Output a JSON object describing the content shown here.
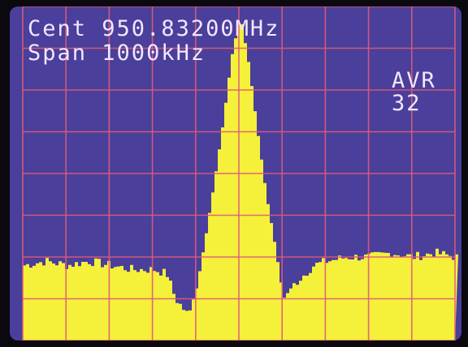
{
  "readout": {
    "center_label": "Cent",
    "center_value": "950.83200MHz",
    "span_label": "Span",
    "span_value": "1000kHz",
    "averaging_label": "AVR",
    "averaging_count": "32"
  },
  "colors": {
    "screen_background": "#4a3f9a",
    "grid": "#e05a7a",
    "trace_fill": "#f5f03a",
    "text": "#f2e6ff"
  },
  "grid": {
    "vertical_divisions": 10,
    "horizontal_divisions": 8
  },
  "chart_data": {
    "type": "area",
    "x": [
      -500,
      -450,
      -400,
      -350,
      -300,
      -250,
      -200,
      -170,
      -150,
      -120,
      -100,
      -80,
      -60,
      -40,
      -20,
      0,
      20,
      40,
      60,
      80,
      100,
      120,
      150,
      170,
      200,
      250,
      300,
      350,
      400,
      450,
      500
    ],
    "values": [
      -62,
      -61,
      -62,
      -61,
      -62,
      -63,
      -63,
      -64,
      -70,
      -74,
      -67,
      -55,
      -42,
      -28,
      -12,
      -2,
      -14,
      -30,
      -45,
      -57,
      -70,
      -67,
      -64,
      -62,
      -61,
      -60,
      -60,
      -59,
      -60,
      -59,
      -60
    ],
    "xlim": [
      -500,
      500
    ],
    "ylim": [
      -80,
      0
    ],
    "grid": true
  }
}
